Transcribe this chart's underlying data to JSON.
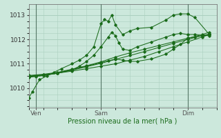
{
  "title": "Pression niveau de la mer( hPa )",
  "bg_color": "#cce8dc",
  "grid_color": "#aacfbf",
  "line_color": "#1a6b1a",
  "marker_color": "#1a6b1a",
  "xlim": [
    0,
    52
  ],
  "ylim": [
    1009.2,
    1013.45
  ],
  "yticks": [
    1010,
    1011,
    1012,
    1013
  ],
  "xtick_labels": [
    "Ven",
    "Sam",
    "Dim"
  ],
  "xtick_positions": [
    2,
    20,
    44
  ],
  "vlines": [
    2,
    20,
    44
  ],
  "series": [
    [
      0,
      1009.6,
      1,
      1009.85,
      3,
      1010.35,
      5,
      1010.5,
      7,
      1010.65,
      9,
      1010.8,
      12,
      1011.0,
      14,
      1011.15,
      16,
      1011.35,
      18,
      1011.7,
      20,
      1012.65,
      21,
      1012.82,
      22,
      1012.75,
      23,
      1013.0,
      24,
      1012.6,
      26,
      1012.2,
      28,
      1012.35,
      30,
      1012.45,
      34,
      1012.5,
      38,
      1012.8,
      40,
      1013.0,
      42,
      1013.05,
      44,
      1013.05,
      46,
      1012.9,
      50,
      1012.2
    ],
    [
      0,
      1010.5,
      4,
      1010.55,
      8,
      1010.62,
      12,
      1010.7,
      16,
      1010.8,
      20,
      1010.9,
      24,
      1011.0,
      28,
      1011.15,
      32,
      1011.3,
      36,
      1011.5,
      40,
      1011.7,
      44,
      1011.9,
      48,
      1012.1,
      50,
      1012.2
    ],
    [
      0,
      1010.45,
      2,
      1010.48,
      4,
      1010.52,
      8,
      1010.62,
      12,
      1010.75,
      14,
      1010.9,
      16,
      1011.1,
      18,
      1011.35,
      20,
      1011.7,
      22,
      1012.1,
      23,
      1012.3,
      24,
      1012.15,
      25,
      1011.85,
      26,
      1011.6,
      28,
      1011.55,
      30,
      1011.7,
      34,
      1011.9,
      38,
      1012.1,
      40,
      1012.2,
      42,
      1012.25,
      44,
      1012.2,
      46,
      1012.2,
      50,
      1012.15
    ],
    [
      0,
      1010.52,
      4,
      1010.57,
      8,
      1010.65,
      12,
      1010.78,
      16,
      1010.92,
      20,
      1011.08,
      24,
      1011.28,
      28,
      1011.45,
      32,
      1011.6,
      36,
      1011.75,
      40,
      1011.9,
      44,
      1012.05,
      48,
      1012.2,
      50,
      1012.3
    ],
    [
      0,
      1010.48,
      4,
      1010.54,
      8,
      1010.63,
      12,
      1010.76,
      16,
      1010.9,
      20,
      1011.05,
      22,
      1011.12,
      24,
      1011.2,
      26,
      1011.15,
      28,
      1011.1,
      30,
      1011.1,
      34,
      1011.2,
      38,
      1011.4,
      40,
      1011.6,
      42,
      1011.8,
      44,
      1012.05,
      46,
      1012.1,
      48,
      1012.15,
      50,
      1012.2
    ],
    [
      0,
      1010.47,
      4,
      1010.52,
      8,
      1010.61,
      12,
      1010.74,
      16,
      1010.88,
      20,
      1011.02,
      24,
      1011.18,
      28,
      1011.34,
      32,
      1011.5,
      36,
      1011.67,
      40,
      1011.84,
      44,
      1012.0,
      48,
      1012.16,
      50,
      1012.22
    ]
  ]
}
